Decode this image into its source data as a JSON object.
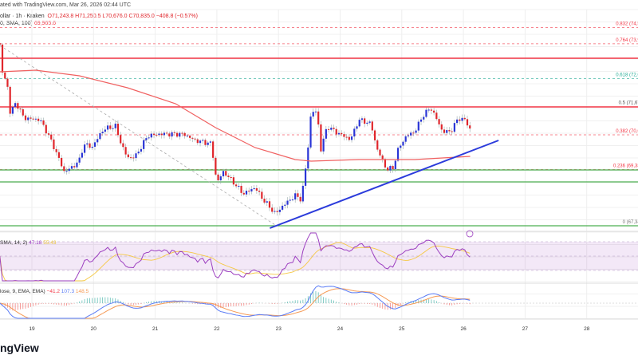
{
  "header": {
    "watermark": "ated with TradingView.com, Mar 26, 2026 02:44 UTC",
    "symbol": "ollar · 1h · Kraken",
    "ohlc": "O71,243.8  H71,250.5  L70,676.0  C70,835.0  −408.8 (−0.57%)",
    "sma_label": "0, SMA, 100)",
    "sma_value": "69,965.6"
  },
  "fib_labels": [
    {
      "text": "0.832 (74,54",
      "price": 74546,
      "color": "#f23645"
    },
    {
      "text": "0.764 (73,95",
      "price": 73955,
      "color": "#f23645"
    },
    {
      "text": "0.618 (72,69",
      "price": 72690,
      "color": "#22ab94"
    },
    {
      "text": "0.5 (71,670",
      "price": 71670,
      "color": "#555555"
    },
    {
      "text": "0.382 (70,64",
      "price": 70645,
      "color": "#f23645"
    },
    {
      "text": "0.236 (69,385",
      "price": 69385,
      "color": "#f23645"
    },
    {
      "text": "0 (67,340",
      "price": 67340,
      "color": "#777777"
    }
  ],
  "rsi": {
    "label": "SMA, 14, 2)",
    "value": "47.18",
    "ma_value": "55.43"
  },
  "macd": {
    "label": "lose, 9, EMA, EMA)",
    "hist": "−41.2",
    "macd": "107.3",
    "signal": "148.5"
  },
  "logo_text": "ngView",
  "colors": {
    "up": "#2a35d6",
    "down": "#e0262c",
    "sma": "#f06060",
    "trend": "#2b3bdb",
    "support": "#4caf50",
    "resistance": "#f23645",
    "rsi": "#9c3fc0",
    "rsi_ma": "#f5c842",
    "macd": "#5b7cf5",
    "signal": "#f59a55"
  },
  "chart_data": {
    "type": "candlestick",
    "interval": "1h",
    "x_ticks": [
      "19",
      "20",
      "21",
      "22",
      "23",
      "24",
      "25",
      "26",
      "27",
      "28"
    ],
    "close_path": [
      [
        18.48,
        73900
      ],
      [
        18.52,
        72940
      ],
      [
        18.61,
        72357
      ],
      [
        18.65,
        71400
      ],
      [
        18.74,
        71835
      ],
      [
        18.87,
        71255
      ],
      [
        19.13,
        71197
      ],
      [
        19.26,
        70675
      ],
      [
        19.39,
        70037
      ],
      [
        19.52,
        69312
      ],
      [
        19.65,
        69457
      ],
      [
        19.78,
        69747
      ],
      [
        19.84,
        70327
      ],
      [
        19.97,
        70182
      ],
      [
        20.16,
        70849
      ],
      [
        20.36,
        70965
      ],
      [
        20.42,
        70472
      ],
      [
        20.55,
        69805
      ],
      [
        20.68,
        69863
      ],
      [
        20.88,
        70617
      ],
      [
        21.07,
        70675
      ],
      [
        21.46,
        70675
      ],
      [
        21.65,
        70443
      ],
      [
        21.91,
        70327
      ],
      [
        22.0,
        68877
      ],
      [
        22.1,
        69312
      ],
      [
        22.23,
        69022
      ],
      [
        22.43,
        68500
      ],
      [
        22.62,
        68732
      ],
      [
        22.75,
        68297
      ],
      [
        22.95,
        67775
      ],
      [
        23.07,
        68065
      ],
      [
        23.27,
        68442
      ],
      [
        23.37,
        68297
      ],
      [
        23.46,
        69747
      ],
      [
        23.53,
        71487
      ],
      [
        23.63,
        71487
      ],
      [
        23.68,
        70037
      ],
      [
        23.79,
        70965
      ],
      [
        23.92,
        70762
      ],
      [
        24.17,
        70472
      ],
      [
        24.3,
        71197
      ],
      [
        24.5,
        71052
      ],
      [
        24.59,
        70182
      ],
      [
        24.76,
        69370
      ],
      [
        24.86,
        69457
      ],
      [
        24.95,
        70182
      ],
      [
        25.08,
        70617
      ],
      [
        25.21,
        70762
      ],
      [
        25.34,
        71342
      ],
      [
        25.47,
        71632
      ],
      [
        25.57,
        71197
      ],
      [
        25.66,
        70762
      ],
      [
        25.79,
        70762
      ],
      [
        25.92,
        71255
      ],
      [
        26.02,
        71197
      ],
      [
        26.11,
        70835
      ]
    ],
    "sma100": [
      [
        18.48,
        72937
      ],
      [
        19.06,
        72995
      ],
      [
        19.77,
        72792
      ],
      [
        20.55,
        72357
      ],
      [
        21.33,
        71777
      ],
      [
        21.98,
        70907
      ],
      [
        22.62,
        70182
      ],
      [
        23.27,
        69747
      ],
      [
        23.53,
        69689
      ],
      [
        24.3,
        69747
      ],
      [
        25.21,
        69747
      ],
      [
        26.11,
        69863
      ]
    ],
    "trendline": [
      [
        22.86,
        67253
      ],
      [
        26.57,
        70443
      ]
    ],
    "resistance_lines": [
      73430,
      71661
    ],
    "support_lines": [
      69370,
      68935,
      67340
    ],
    "rsi_levels": [
      70,
      50,
      30
    ]
  }
}
